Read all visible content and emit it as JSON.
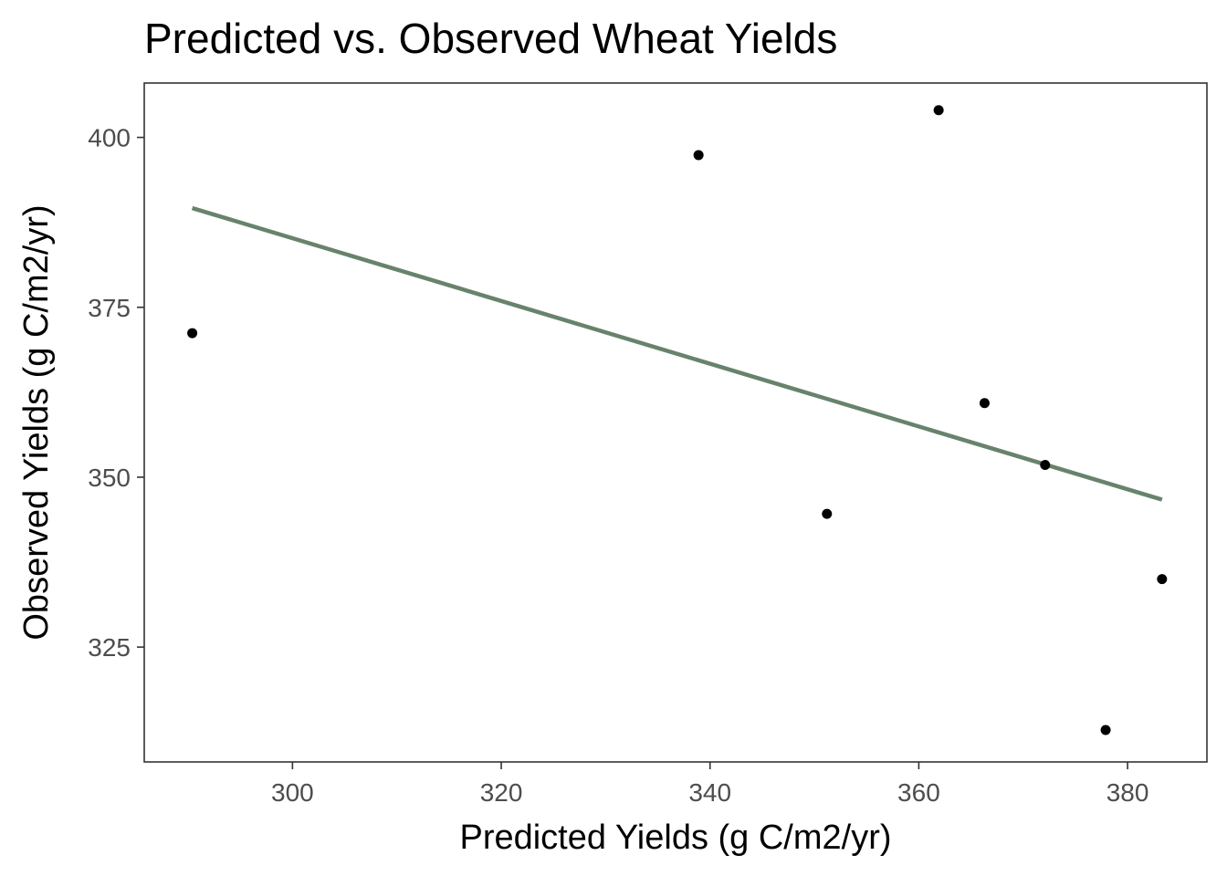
{
  "chart_data": {
    "type": "scatter",
    "title": "Predicted vs. Observed Wheat Yields",
    "xlabel": "Predicted Yields (g C/m2/yr)",
    "ylabel": "Observed Yields (g C/m2/yr)",
    "xlim": [
      285.8,
      387.6
    ],
    "ylim": [
      308.1,
      408.0
    ],
    "xticks": [
      300,
      320,
      340,
      360,
      380
    ],
    "yticks": [
      325,
      350,
      375,
      400
    ],
    "grid": false,
    "points": [
      {
        "x": 290.4,
        "y": 371.2
      },
      {
        "x": 338.9,
        "y": 397.4
      },
      {
        "x": 351.2,
        "y": 344.6
      },
      {
        "x": 361.9,
        "y": 404.0
      },
      {
        "x": 366.3,
        "y": 360.9
      },
      {
        "x": 372.1,
        "y": 351.8
      },
      {
        "x": 377.9,
        "y": 312.8
      },
      {
        "x": 383.3,
        "y": 335.0
      }
    ],
    "trend_line": {
      "x": [
        290.4,
        383.3
      ],
      "y": [
        389.6,
        346.7
      ]
    },
    "colors": {
      "points": "#000000",
      "trend_line": "#67836c",
      "panel_border": "#333333",
      "ticks": "#333333",
      "tick_labels": "#4d4d4d"
    }
  }
}
